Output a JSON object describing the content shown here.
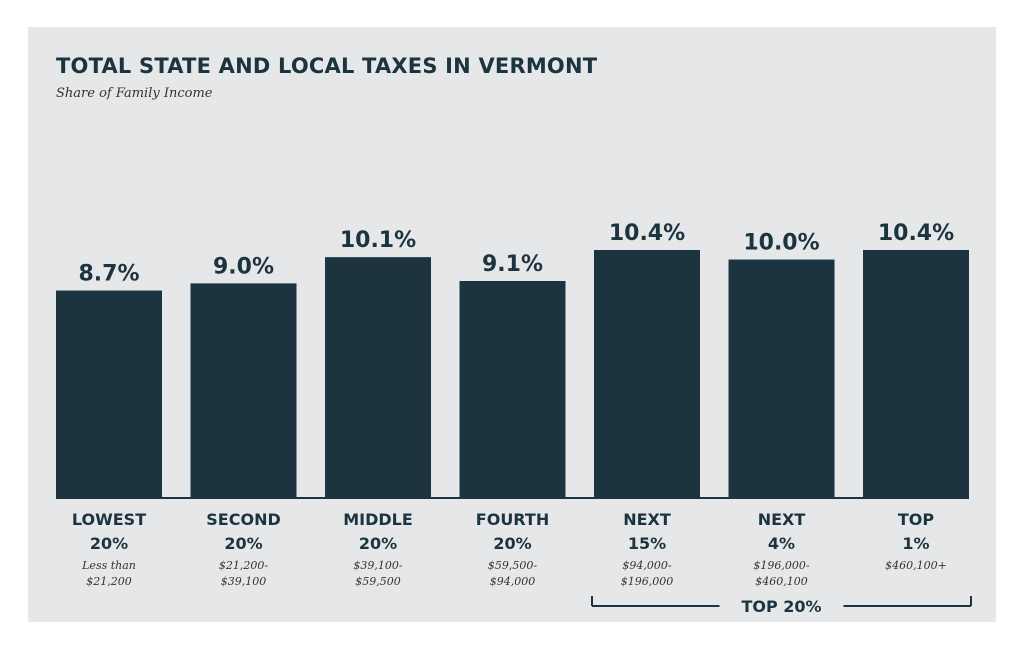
{
  "chart_data": {
    "type": "bar",
    "title": "TOTAL STATE AND LOCAL TAXES IN VERMONT",
    "subtitle": "Share of Family Income",
    "categories": [
      {
        "line1": "LOWEST",
        "line2": "20%",
        "range": [
          "Less than",
          "$21,200"
        ]
      },
      {
        "line1": "SECOND",
        "line2": "20%",
        "range": [
          "$21,200-",
          "$39,100"
        ]
      },
      {
        "line1": "MIDDLE",
        "line2": "20%",
        "range": [
          "$39,100-",
          "$59,500"
        ]
      },
      {
        "line1": "FOURTH",
        "line2": "20%",
        "range": [
          "$59,500-",
          "$94,000"
        ]
      },
      {
        "line1": "NEXT",
        "line2": "15%",
        "range": [
          "$94,000-",
          "$196,000"
        ]
      },
      {
        "line1": "NEXT",
        "line2": "4%",
        "range": [
          "$196,000-",
          "$460,100"
        ]
      },
      {
        "line1": "TOP",
        "line2": "1%",
        "range": [
          "$460,100+"
        ]
      }
    ],
    "values": [
      8.7,
      9.0,
      10.1,
      9.1,
      10.4,
      10.0,
      10.4
    ],
    "value_labels": [
      "8.7%",
      "9.0%",
      "10.1%",
      "9.1%",
      "10.4%",
      "10.0%",
      "10.4%"
    ],
    "unit": "%",
    "ylim": [
      0,
      10.4
    ],
    "grid": false,
    "legend": "none",
    "bar_color": "#1c3440",
    "group_bracket": {
      "label": "TOP 20%",
      "from_index": 4,
      "to_index": 6
    }
  }
}
